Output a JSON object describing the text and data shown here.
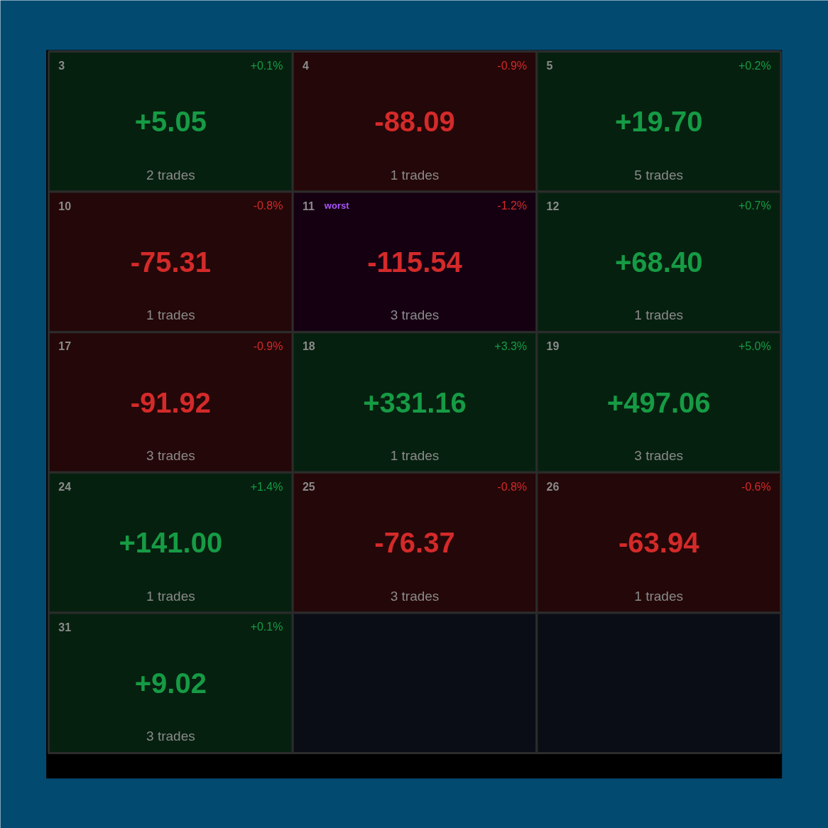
{
  "chart_data": {
    "type": "heatmap",
    "categories": [
      null,
      null,
      null
    ],
    "y_categories": [
      null,
      null,
      null,
      null,
      null
    ],
    "cells": [
      [
        5.05,
        -88.09,
        19.7
      ],
      [
        -75.31,
        -115.54,
        68.4
      ],
      [
        -91.92,
        331.16,
        497.06
      ],
      [
        141.0,
        -76.37,
        -63.94
      ],
      [
        9.02,
        null,
        null
      ]
    ],
    "cell_labels": [
      [
        "+5.05",
        "-88.09",
        "+19.70"
      ],
      [
        "-75.31",
        "-115.54",
        "+68.40"
      ],
      [
        "-91.92",
        "+331.16",
        "+497.06"
      ],
      [
        "+141.00",
        "-76.37",
        "-63.94"
      ],
      [
        "+9.02",
        null,
        null
      ]
    ],
    "annotations": [
      "3",
      "+0.1%",
      "2 trades",
      "4",
      "-0.9%",
      "1 trades",
      "5",
      "+0.2%",
      "5 trades",
      "10",
      "-0.8%",
      "1 trades",
      "11",
      "-1.2%",
      "3 trades",
      "12",
      "+0.7%",
      "1 trades",
      "17",
      "-0.9%",
      "3 trades",
      "18",
      "+3.3%",
      "1 trades",
      "19",
      "+5.0%",
      "3 trades",
      "24",
      "+1.4%",
      "1 trades",
      "25",
      "-0.8%",
      "3 trades",
      "26",
      "-0.6%",
      "1 trades",
      "31",
      "+0.1%",
      "3 trades",
      "worst"
    ]
  }
}
